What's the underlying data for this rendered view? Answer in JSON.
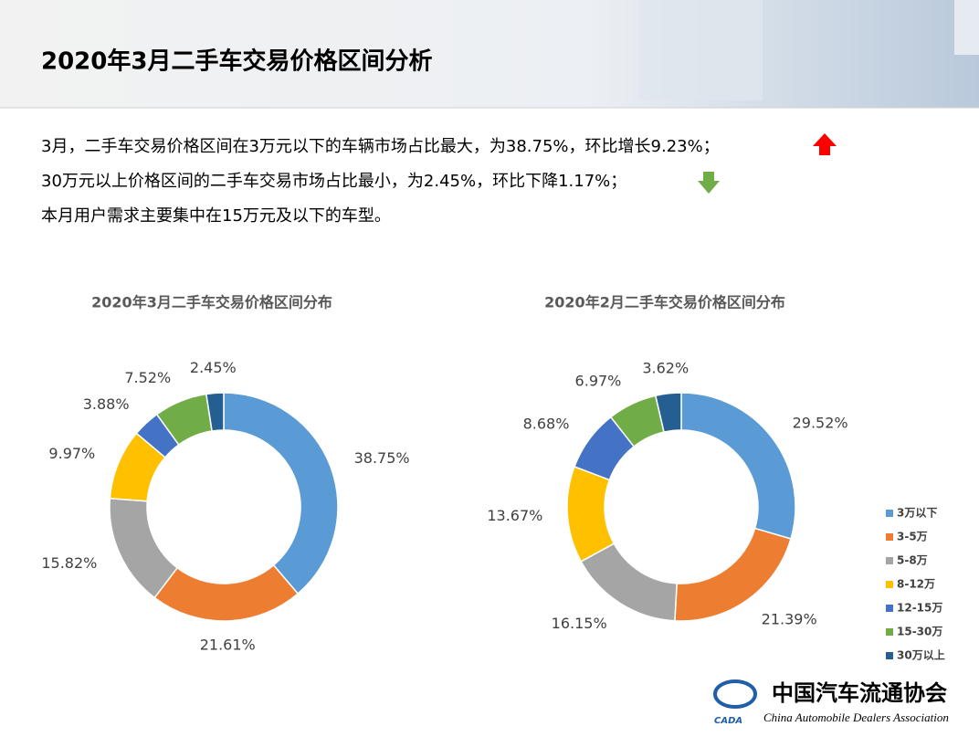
{
  "title": "2020年3月二手车交易价格区间分析",
  "paragraphs": [
    "3月，二手车交易价格区间在3万元以下的车辆市场占比最大，为38.75%，环比增长9.23%；",
    "30万元以上价格区间的二手车交易市场占比最小，为2.45%，环比下降1.17%；",
    "本月用户需求主要集中在15万元及以下的车型。"
  ],
  "logo": {
    "name": "中国汽车流通协会",
    "english": "China Automobile Dealers Association",
    "abbr": "CADA"
  },
  "chart_data": [
    {
      "type": "donut",
      "title": "2020年3月二手车交易价格区间分布",
      "categories": [
        "3万以下",
        "3-5万",
        "5-8万",
        "8-12万",
        "12-15万",
        "15-30万",
        "30万以上"
      ],
      "values": [
        38.75,
        21.61,
        15.82,
        9.97,
        3.88,
        7.52,
        2.45
      ],
      "value_labels": [
        "38.75%",
        "21.61%",
        "15.82%",
        "9.97%",
        "3.88%",
        "7.52%",
        "2.45%"
      ],
      "colors": [
        "#5b9bd5",
        "#ed7d31",
        "#a5a5a5",
        "#ffc000",
        "#4472c4",
        "#70ad47",
        "#255e91"
      ]
    },
    {
      "type": "donut",
      "title": "2020年2月二手车交易价格区间分布",
      "categories": [
        "3万以下",
        "3-5万",
        "5-8万",
        "8-12万",
        "12-15万",
        "15-30万",
        "30万以上"
      ],
      "values": [
        29.52,
        21.39,
        16.15,
        13.67,
        8.68,
        6.97,
        3.62
      ],
      "value_labels": [
        "29.52%",
        "21.39%",
        "16.15%",
        "13.67%",
        "8.68%",
        "6.97%",
        "3.62%"
      ],
      "colors": [
        "#5b9bd5",
        "#ed7d31",
        "#a5a5a5",
        "#ffc000",
        "#4472c4",
        "#70ad47",
        "#255e91"
      ],
      "legend": "right"
    }
  ]
}
